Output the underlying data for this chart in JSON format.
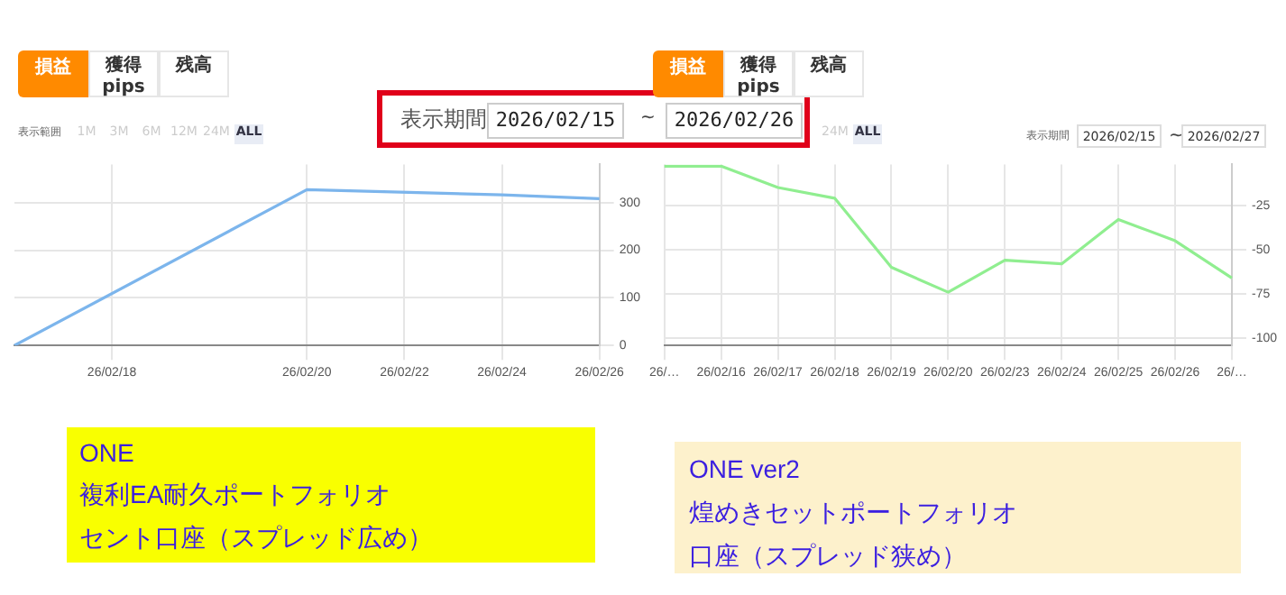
{
  "chart_data": [
    {
      "type": "line",
      "categories": [
        null,
        null,
        "26/02/18",
        null,
        null,
        null,
        "26/02/20",
        null,
        "26/02/22",
        null,
        "26/02/24",
        null,
        "26/02/26"
      ],
      "series": [
        {
          "color": "#7cb5ec",
          "values": [
            0,
            null,
            null,
            null,
            null,
            null,
            327,
            null,
            null,
            null,
            316,
            null,
            308
          ]
        }
      ],
      "ylim": [
        0,
        380
      ],
      "yticks": [
        0,
        100,
        200,
        300
      ],
      "grid": true,
      "legend": false,
      "marker": "none",
      "line_style": "solid",
      "annotations": [
        "損益",
        "獲得 pips",
        "残高",
        "表示範囲",
        "1M",
        "3M",
        "6M",
        "12M",
        "24M",
        "ALL",
        "表示期間",
        "2026/02/15",
        "~",
        "2026/02/26",
        "ONE",
        "複利EA耐久ポートフォリオ",
        "セント口座（スプレッド広め）"
      ]
    },
    {
      "type": "line",
      "categories": [
        "26/…",
        "26/02/16",
        "26/02/17",
        "26/02/18",
        "26/02/19",
        "26/02/20",
        "26/02/23",
        "26/02/24",
        "26/02/25",
        "26/02/26",
        "26/…"
      ],
      "series": [
        {
          "color": "#90ee90",
          "values": [
            -3,
            -3,
            -15,
            -21,
            -60,
            -74,
            -56,
            -58,
            -33,
            -45,
            -66
          ]
        }
      ],
      "ylim": [
        -104,
        -2
      ],
      "yticks": [
        -25,
        -50,
        -75,
        -100
      ],
      "grid": true,
      "legend": false,
      "marker": "none",
      "line_style": "solid",
      "annotations": [
        "損益",
        "獲得 pips",
        "残高",
        "24M",
        "ALL",
        "表示期間",
        "2026/02/15",
        "~",
        "2026/02/27",
        "ONE ver2",
        "煌めきセットポートフォリオ",
        "口座（スプレッド狭め）"
      ]
    }
  ]
}
